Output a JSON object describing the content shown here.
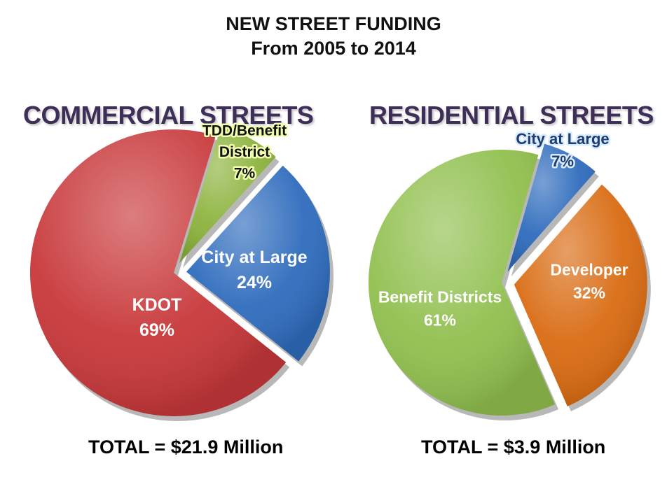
{
  "title": {
    "line1": "NEW STREET FUNDING",
    "line2": "From 2005 to 2014"
  },
  "chart_data": [
    {
      "type": "pie",
      "title": "COMMERCIAL STREETS",
      "total": "TOTAL = $21.9 Million",
      "slices": [
        {
          "label": "KDOT",
          "value": 69,
          "pct_label": "69%",
          "color": "#c8383a",
          "exploded": false
        },
        {
          "label": "TDD/Benefit District",
          "value": 7,
          "pct_label": "7%",
          "color": "#8cb33d",
          "exploded": true
        },
        {
          "label": "City at Large",
          "value": 24,
          "pct_label": "24%",
          "color": "#2f6cbd",
          "exploded": true
        }
      ]
    },
    {
      "type": "pie",
      "title": "RESIDENTIAL STREETS",
      "total": "TOTAL = $3.9 Million",
      "slices": [
        {
          "label": "Benefit Districts",
          "value": 61,
          "pct_label": "61%",
          "color": "#91c04f",
          "exploded": false
        },
        {
          "label": "City at Large",
          "value": 7,
          "pct_label": "7%",
          "color": "#2f6cbd",
          "exploded": true
        },
        {
          "label": "Developer",
          "value": 32,
          "pct_label": "32%",
          "color": "#d96b12",
          "exploded": true
        }
      ]
    }
  ]
}
